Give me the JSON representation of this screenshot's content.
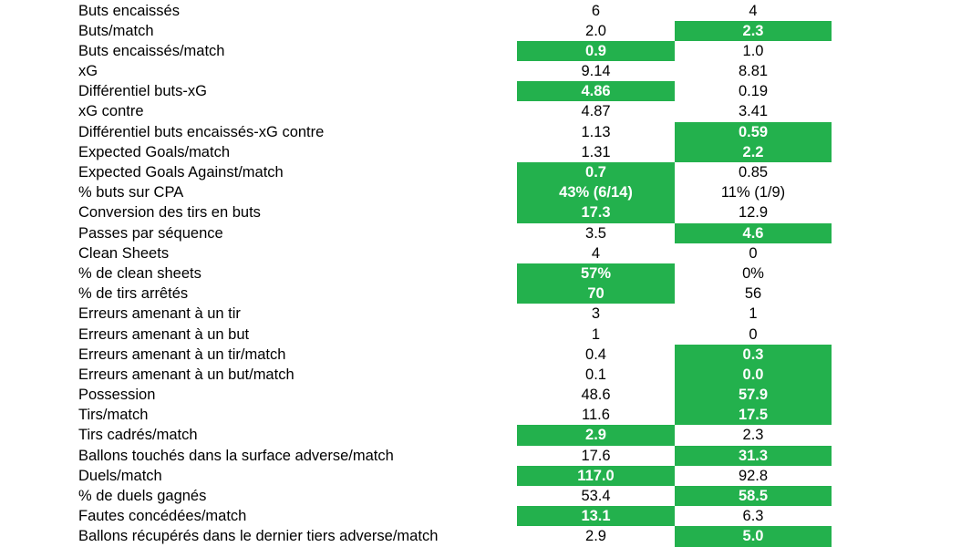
{
  "highlight_color": "#23b14d",
  "rows": [
    {
      "label": "Buts encaissés",
      "a": "6",
      "b": "4",
      "hl": ""
    },
    {
      "label": "Buts/match",
      "a": "2.0",
      "b": "2.3",
      "hl": "b"
    },
    {
      "label": "Buts encaissés/match",
      "a": "0.9",
      "b": "1.0",
      "hl": "a"
    },
    {
      "label": "xG",
      "a": "9.14",
      "b": "8.81",
      "hl": ""
    },
    {
      "label": "Différentiel buts-xG",
      "a": "4.86",
      "b": "0.19",
      "hl": "a"
    },
    {
      "label": "xG contre",
      "a": "4.87",
      "b": "3.41",
      "hl": ""
    },
    {
      "label": "Différentiel buts encaissés-xG contre",
      "a": "1.13",
      "b": "0.59",
      "hl": "b"
    },
    {
      "label": "Expected Goals/match",
      "a": "1.31",
      "b": "2.2",
      "hl": "b"
    },
    {
      "label": "Expected Goals Against/match",
      "a": "0.7",
      "b": "0.85",
      "hl": "a"
    },
    {
      "label": "% buts sur CPA",
      "a": "43% (6/14)",
      "b": "11% (1/9)",
      "hl": "a"
    },
    {
      "label": "Conversion des tirs en buts",
      "a": "17.3",
      "b": "12.9",
      "hl": "a"
    },
    {
      "label": "Passes par séquence",
      "a": "3.5",
      "b": "4.6",
      "hl": "b"
    },
    {
      "label": "Clean Sheets",
      "a": "4",
      "b": "0",
      "hl": ""
    },
    {
      "label": "% de clean sheets",
      "a": "57%",
      "b": "0%",
      "hl": "a"
    },
    {
      "label": "% de tirs arrêtés",
      "a": "70",
      "b": "56",
      "hl": "a"
    },
    {
      "label": "Erreurs amenant à un tir",
      "a": "3",
      "b": "1",
      "hl": ""
    },
    {
      "label": "Erreurs amenant à un but",
      "a": "1",
      "b": "0",
      "hl": ""
    },
    {
      "label": "Erreurs amenant à un tir/match",
      "a": "0.4",
      "b": "0.3",
      "hl": "b"
    },
    {
      "label": "Erreurs amenant à un but/match",
      "a": "0.1",
      "b": "0.0",
      "hl": "b"
    },
    {
      "label": "Possession",
      "a": "48.6",
      "b": "57.9",
      "hl": "b"
    },
    {
      "label": "Tirs/match",
      "a": "11.6",
      "b": "17.5",
      "hl": "b"
    },
    {
      "label": "Tirs cadrés/match",
      "a": "2.9",
      "b": "2.3",
      "hl": "a"
    },
    {
      "label": "Ballons touchés dans la surface adverse/match",
      "a": "17.6",
      "b": "31.3",
      "hl": "b"
    },
    {
      "label": "Duels/match",
      "a": "117.0",
      "b": "92.8",
      "hl": "a"
    },
    {
      "label": "% de duels gagnés",
      "a": "53.4",
      "b": "58.5",
      "hl": "b"
    },
    {
      "label": "Fautes concédées/match",
      "a": "13.1",
      "b": "6.3",
      "hl": "a"
    },
    {
      "label": "Ballons récupérés dans le dernier tiers adverse/match",
      "a": "2.9",
      "b": "5.0",
      "hl": "b"
    }
  ]
}
